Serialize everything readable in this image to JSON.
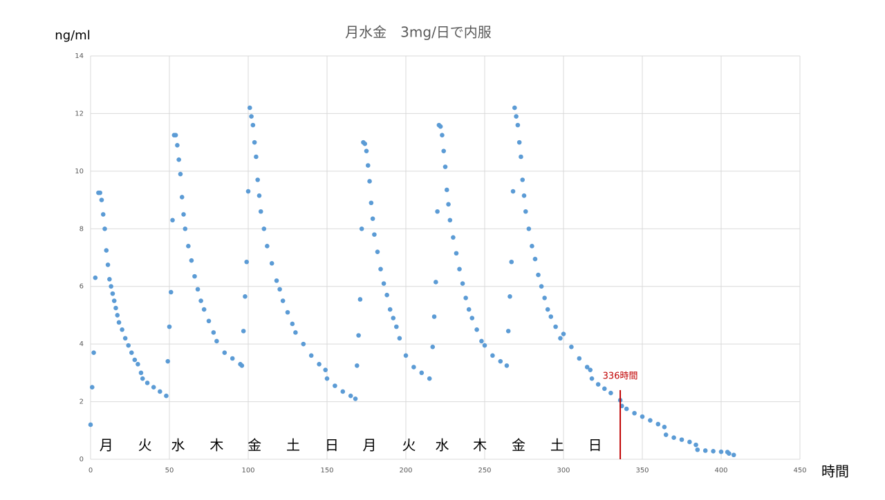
{
  "chart_data": {
    "type": "scatter",
    "title": "月水金　3mg/日で内服",
    "y_label": "ng/ml",
    "x_label": "時間",
    "xlim": [
      0,
      450
    ],
    "xticks": [
      0,
      50,
      100,
      150,
      200,
      250,
      300,
      350,
      400,
      450
    ],
    "ylim": [
      0,
      14
    ],
    "yticks": [
      0,
      2,
      4,
      6,
      8,
      10,
      12,
      14
    ],
    "grid": true,
    "series": [
      {
        "color": "#5b9bd5",
        "x": [
          0,
          1,
          2,
          3,
          5,
          6,
          7,
          8,
          9,
          10,
          11,
          12,
          13,
          14,
          15,
          16,
          17,
          18,
          20,
          22,
          24,
          26,
          28,
          30,
          32,
          33,
          36,
          40,
          44,
          48,
          49,
          50,
          51,
          52,
          53,
          54,
          55,
          56,
          57,
          58,
          59,
          60,
          62,
          64,
          66,
          68,
          70,
          72,
          75,
          78,
          80,
          85,
          90,
          95,
          96,
          97,
          98,
          99,
          100,
          101,
          102,
          103,
          104,
          105,
          106,
          107,
          108,
          110,
          112,
          115,
          118,
          120,
          122,
          125,
          128,
          130,
          135,
          140,
          145,
          149,
          150,
          155,
          160,
          165,
          168,
          169,
          170,
          171,
          172,
          173,
          174,
          175,
          176,
          177,
          178,
          179,
          180,
          182,
          184,
          186,
          188,
          190,
          192,
          194,
          196,
          200,
          205,
          210,
          215,
          217,
          218,
          219,
          220,
          221,
          222,
          223,
          224,
          225,
          226,
          227,
          228,
          230,
          232,
          234,
          236,
          238,
          240,
          242,
          245,
          248,
          250,
          255,
          260,
          264,
          265,
          266,
          267,
          268,
          269,
          270,
          271,
          272,
          273,
          274,
          275,
          276,
          278,
          280,
          282,
          284,
          286,
          288,
          290,
          292,
          295,
          298,
          300,
          305,
          310,
          315,
          317,
          318,
          322,
          326,
          330,
          336,
          337,
          340,
          345,
          350,
          355,
          360,
          364,
          365,
          370,
          375,
          380,
          384,
          385,
          390,
          395,
          400,
          404,
          405,
          408
        ],
        "values": [
          1.2,
          2.5,
          3.7,
          6.3,
          9.25,
          9.25,
          9.0,
          8.5,
          8.0,
          7.25,
          6.75,
          6.25,
          6.0,
          5.75,
          5.5,
          5.25,
          5.0,
          4.75,
          4.5,
          4.2,
          3.95,
          3.7,
          3.45,
          3.3,
          3.0,
          2.8,
          2.65,
          2.5,
          2.35,
          2.2,
          3.4,
          4.6,
          5.8,
          8.3,
          11.25,
          11.25,
          10.9,
          10.4,
          9.9,
          9.1,
          8.5,
          8.0,
          7.4,
          6.9,
          6.35,
          5.9,
          5.5,
          5.2,
          4.8,
          4.4,
          4.1,
          3.7,
          3.5,
          3.3,
          3.25,
          4.45,
          5.65,
          6.85,
          9.3,
          12.2,
          11.9,
          11.6,
          11.0,
          10.5,
          9.7,
          9.15,
          8.6,
          8.0,
          7.4,
          6.8,
          6.2,
          5.9,
          5.5,
          5.1,
          4.7,
          4.4,
          4.0,
          3.6,
          3.3,
          3.1,
          2.8,
          2.55,
          2.35,
          2.2,
          2.1,
          3.25,
          4.3,
          5.55,
          8.0,
          11.0,
          10.95,
          10.7,
          10.2,
          9.65,
          8.9,
          8.35,
          7.8,
          7.2,
          6.6,
          6.1,
          5.7,
          5.2,
          4.9,
          4.6,
          4.2,
          3.6,
          3.2,
          3.0,
          2.8,
          3.9,
          4.95,
          6.15,
          8.6,
          11.6,
          11.55,
          11.25,
          10.7,
          10.15,
          9.35,
          8.85,
          8.3,
          7.7,
          7.15,
          6.6,
          6.1,
          5.6,
          5.2,
          4.9,
          4.5,
          4.1,
          3.95,
          3.6,
          3.4,
          3.25,
          4.45,
          5.65,
          6.85,
          9.3,
          12.2,
          11.9,
          11.6,
          11.0,
          10.5,
          9.7,
          9.15,
          8.6,
          8.0,
          7.4,
          6.95,
          6.4,
          6.0,
          5.6,
          5.2,
          4.95,
          4.6,
          4.2,
          4.35,
          3.9,
          3.5,
          3.2,
          3.1,
          2.8,
          2.6,
          2.45,
          2.3,
          2.05,
          1.85,
          1.75,
          1.6,
          1.48,
          1.35,
          1.22,
          1.12,
          0.85,
          0.75,
          0.68,
          0.6,
          0.5,
          0.33,
          0.3,
          0.28,
          0.26,
          0.25,
          0.2,
          0.15
        ]
      }
    ],
    "annotations": [
      {
        "text": "月",
        "x": 10,
        "y": 0.5
      },
      {
        "text": "火",
        "x": 34.5,
        "y": 0.5
      },
      {
        "text": "水",
        "x": 55.5,
        "y": 0.5
      },
      {
        "text": "木",
        "x": 80,
        "y": 0.5
      },
      {
        "text": "金",
        "x": 104,
        "y": 0.5
      },
      {
        "text": "土",
        "x": 128.5,
        "y": 0.5
      },
      {
        "text": "日",
        "x": 153,
        "y": 0.5
      },
      {
        "text": "月",
        "x": 177,
        "y": 0.5
      },
      {
        "text": "火",
        "x": 202,
        "y": 0.5
      },
      {
        "text": "水",
        "x": 223,
        "y": 0.5
      },
      {
        "text": "木",
        "x": 247,
        "y": 0.5
      },
      {
        "text": "金",
        "x": 271.5,
        "y": 0.5
      },
      {
        "text": "土",
        "x": 296,
        "y": 0.5
      },
      {
        "text": "日",
        "x": 320,
        "y": 0.5
      }
    ],
    "vline": {
      "x": 336,
      "ymax": 2.4,
      "label": "336時間",
      "color": "#c00000"
    }
  }
}
